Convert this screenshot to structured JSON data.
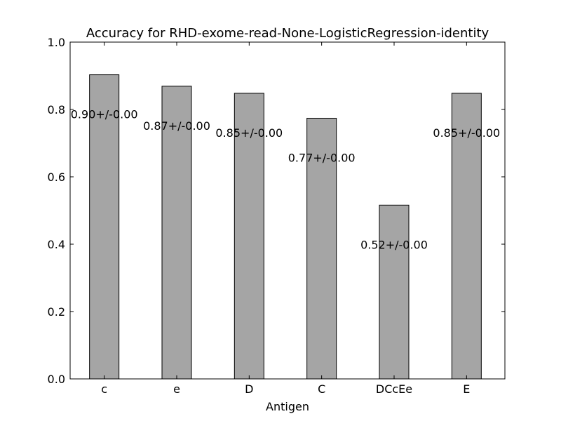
{
  "chart_data": {
    "type": "bar",
    "title": "Accuracy for RHD-exome-read-None-LogisticRegression-identity",
    "xlabel": "Antigen",
    "ylabel": "",
    "categories": [
      "c",
      "e",
      "D",
      "C",
      "DCcEe",
      "E"
    ],
    "values": [
      0.903,
      0.869,
      0.848,
      0.774,
      0.516,
      0.848
    ],
    "data_labels": [
      "0.90+/-0.00",
      "0.87+/-0.00",
      "0.85+/-0.00",
      "0.77+/-0.00",
      "0.52+/-0.00",
      "0.85+/-0.00"
    ],
    "ylim": [
      0,
      1.0
    ],
    "yticks": [
      0.0,
      0.2,
      0.4,
      0.6,
      0.8,
      1.0
    ],
    "ytick_labels": [
      "0.0",
      "0.2",
      "0.4",
      "0.6",
      "0.8",
      "1.0"
    ],
    "grid": false,
    "legend": "none",
    "bar_color": "#a5a5a5"
  }
}
